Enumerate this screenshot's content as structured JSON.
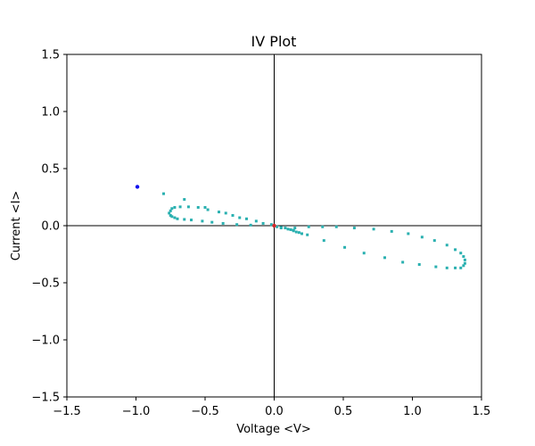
{
  "chart_data": {
    "type": "scatter",
    "title": "IV Plot",
    "xlabel": "Voltage <V>",
    "ylabel": "Current <I>",
    "xlim": [
      -1.5,
      1.5
    ],
    "ylim": [
      -1.5,
      1.5
    ],
    "xticks": [
      -1.5,
      -1.0,
      -0.5,
      0.0,
      0.5,
      1.0,
      1.5
    ],
    "xtick_labels": [
      "−1.5",
      "−1.0",
      "−0.5",
      "0.0",
      "0.5",
      "1.0",
      "1.5"
    ],
    "yticks": [
      1.5,
      1.0,
      0.5,
      0.0,
      -0.5,
      -1.0,
      -1.5
    ],
    "ytick_labels": [
      "1.5",
      "1.0",
      "0.5",
      "0.0",
      "−0.5",
      "−1.0",
      "−1.5"
    ],
    "grid": false,
    "reference_lines": {
      "x": 0,
      "y": 0,
      "color": "#000000"
    },
    "series": [
      {
        "color": "#2ab0b0",
        "marker": "square",
        "points": [
          [
            -0.8,
            0.28
          ],
          [
            -0.65,
            0.23
          ],
          [
            -0.75,
            0.13
          ],
          [
            -0.76,
            0.11
          ],
          [
            -0.75,
            0.09
          ],
          [
            -0.74,
            0.08
          ],
          [
            -0.72,
            0.07
          ],
          [
            -0.7,
            0.06
          ],
          [
            -0.65,
            0.055
          ],
          [
            -0.6,
            0.05
          ],
          [
            -0.52,
            0.04
          ],
          [
            -0.45,
            0.03
          ],
          [
            -0.37,
            0.02
          ],
          [
            -0.27,
            0.01
          ],
          [
            -0.17,
            0.005
          ],
          [
            -0.74,
            0.15
          ],
          [
            -0.72,
            0.16
          ],
          [
            -0.68,
            0.165
          ],
          [
            -0.62,
            0.165
          ],
          [
            -0.55,
            0.16
          ],
          [
            -0.5,
            0.16
          ],
          [
            -0.48,
            0.14
          ],
          [
            -0.4,
            0.12
          ],
          [
            -0.35,
            0.11
          ],
          [
            -0.3,
            0.09
          ],
          [
            -0.25,
            0.07
          ],
          [
            -0.2,
            0.06
          ],
          [
            -0.13,
            0.04
          ],
          [
            -0.08,
            0.02
          ],
          [
            -0.02,
            0.01
          ],
          [
            0.02,
            -0.01
          ],
          [
            0.05,
            -0.015
          ],
          [
            0.08,
            -0.02
          ],
          [
            0.1,
            -0.03
          ],
          [
            0.12,
            -0.035
          ],
          [
            0.14,
            -0.045
          ],
          [
            0.16,
            -0.055
          ],
          [
            0.18,
            -0.06
          ],
          [
            0.2,
            -0.07
          ],
          [
            0.15,
            -0.02
          ],
          [
            0.25,
            -0.01
          ],
          [
            0.35,
            -0.01
          ],
          [
            0.45,
            -0.01
          ],
          [
            0.58,
            -0.02
          ],
          [
            0.72,
            -0.03
          ],
          [
            0.85,
            -0.05
          ],
          [
            0.97,
            -0.07
          ],
          [
            1.07,
            -0.1
          ],
          [
            1.16,
            -0.13
          ],
          [
            1.25,
            -0.17
          ],
          [
            1.31,
            -0.21
          ],
          [
            1.35,
            -0.24
          ],
          [
            1.37,
            -0.27
          ],
          [
            1.38,
            -0.3
          ],
          [
            1.38,
            -0.33
          ],
          [
            1.37,
            -0.35
          ],
          [
            1.35,
            -0.37
          ],
          [
            1.31,
            -0.37
          ],
          [
            1.25,
            -0.37
          ],
          [
            1.17,
            -0.36
          ],
          [
            1.05,
            -0.34
          ],
          [
            0.93,
            -0.32
          ],
          [
            0.8,
            -0.28
          ],
          [
            0.65,
            -0.24
          ],
          [
            0.51,
            -0.19
          ],
          [
            0.36,
            -0.13
          ],
          [
            0.24,
            -0.08
          ],
          [
            0.14,
            -0.04
          ],
          [
            0.05,
            -0.02
          ]
        ]
      },
      {
        "color": "#1010ee",
        "marker": "circle",
        "points": [
          [
            -0.99,
            0.34
          ]
        ]
      },
      {
        "color": "#d62728",
        "marker": "circle",
        "points": [
          [
            0.0,
            0.0
          ]
        ]
      }
    ]
  }
}
